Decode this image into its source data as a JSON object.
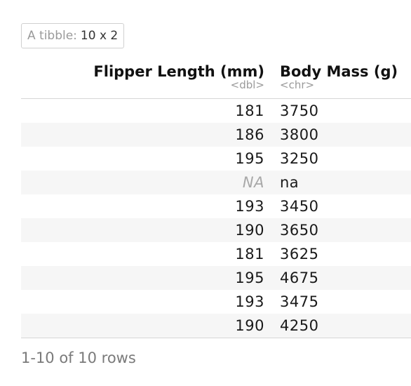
{
  "caption": {
    "label": "A tibble:",
    "dims": "10 x 2"
  },
  "columns": [
    {
      "name": "Flipper Length (mm)",
      "type": "<dbl>"
    },
    {
      "name": "Body Mass (g)",
      "type": "<chr>"
    }
  ],
  "rows": [
    [
      "181",
      "3750"
    ],
    [
      "186",
      "3800"
    ],
    [
      "195",
      "3250"
    ],
    [
      "NA",
      "na"
    ],
    [
      "193",
      "3450"
    ],
    [
      "190",
      "3650"
    ],
    [
      "181",
      "3625"
    ],
    [
      "195",
      "4675"
    ],
    [
      "193",
      "3475"
    ],
    [
      "190",
      "4250"
    ]
  ],
  "footer": "1-10 of 10 rows"
}
